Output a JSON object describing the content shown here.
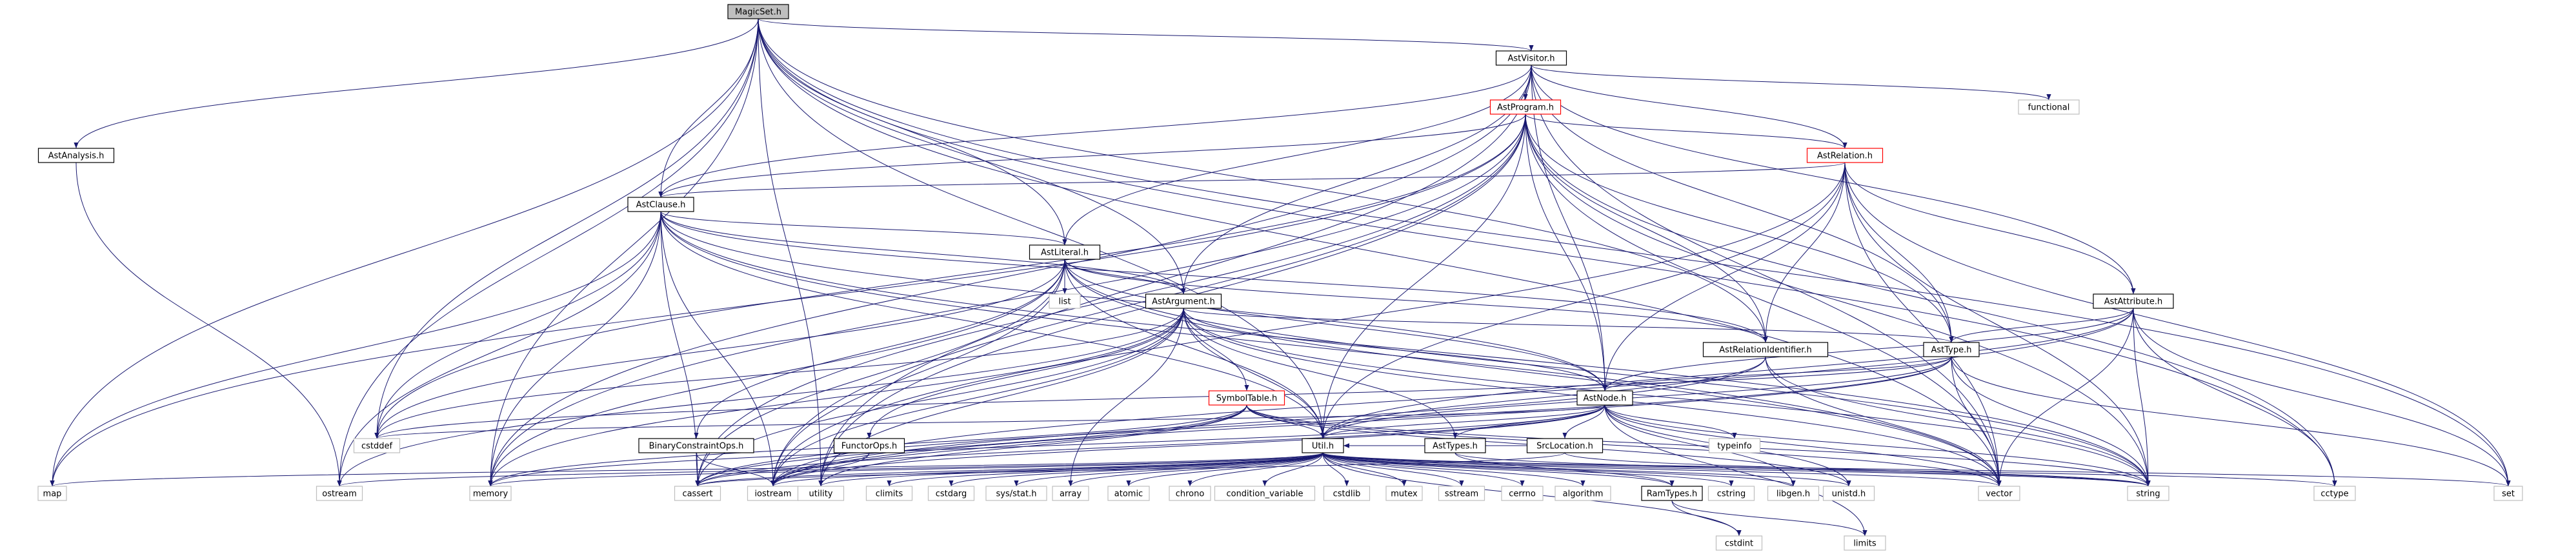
{
  "diagram": {
    "type": "include-dependency-graph",
    "colors": {
      "edge": "#191970",
      "root_fill": "#bfbfbf",
      "root_border": "#000000",
      "documented_border": "#000000",
      "undocumented_border": "#ff0000",
      "system_border": "#bfbfbf",
      "node_fill": "#ffffff"
    },
    "nodes": [
      {
        "id": "magicset",
        "label": "MagicSet.h",
        "kind": "root"
      },
      {
        "id": "astanalysis",
        "label": "AstAnalysis.h",
        "kind": "documented"
      },
      {
        "id": "astvisitor",
        "label": "AstVisitor.h",
        "kind": "documented"
      },
      {
        "id": "astprogram",
        "label": "AstProgram.h",
        "kind": "undocumented"
      },
      {
        "id": "functional",
        "label": "functional",
        "kind": "system"
      },
      {
        "id": "astrelation",
        "label": "AstRelation.h",
        "kind": "undocumented"
      },
      {
        "id": "astclause",
        "label": "AstClause.h",
        "kind": "documented"
      },
      {
        "id": "astliteral",
        "label": "AstLiteral.h",
        "kind": "documented"
      },
      {
        "id": "list",
        "label": "list",
        "kind": "system"
      },
      {
        "id": "astargument",
        "label": "AstArgument.h",
        "kind": "documented"
      },
      {
        "id": "astattribute",
        "label": "AstAttribute.h",
        "kind": "documented"
      },
      {
        "id": "astrelid",
        "label": "AstRelationIdentifier.h",
        "kind": "documented"
      },
      {
        "id": "asttype",
        "label": "AstType.h",
        "kind": "documented"
      },
      {
        "id": "symboltable",
        "label": "SymbolTable.h",
        "kind": "undocumented"
      },
      {
        "id": "astnode",
        "label": "AstNode.h",
        "kind": "documented"
      },
      {
        "id": "typeinfo",
        "label": "typeinfo",
        "kind": "system"
      },
      {
        "id": "cstddef",
        "label": "cstddef",
        "kind": "system"
      },
      {
        "id": "binconst",
        "label": "BinaryConstraintOps.h",
        "kind": "documented"
      },
      {
        "id": "functorops",
        "label": "FunctorOps.h",
        "kind": "documented"
      },
      {
        "id": "utilh",
        "label": "Util.h",
        "kind": "documented"
      },
      {
        "id": "asttypes",
        "label": "AstTypes.h",
        "kind": "documented"
      },
      {
        "id": "srcloc",
        "label": "SrcLocation.h",
        "kind": "documented"
      },
      {
        "id": "map",
        "label": "map",
        "kind": "system"
      },
      {
        "id": "ostream",
        "label": "ostream",
        "kind": "system"
      },
      {
        "id": "memory",
        "label": "memory",
        "kind": "system"
      },
      {
        "id": "cassert",
        "label": "cassert",
        "kind": "system"
      },
      {
        "id": "iostream",
        "label": "iostream",
        "kind": "system"
      },
      {
        "id": "utility",
        "label": "utility",
        "kind": "system"
      },
      {
        "id": "climits",
        "label": "climits",
        "kind": "system"
      },
      {
        "id": "cstdarg",
        "label": "cstdarg",
        "kind": "system"
      },
      {
        "id": "sysstat",
        "label": "sys/stat.h",
        "kind": "system"
      },
      {
        "id": "array",
        "label": "array",
        "kind": "system"
      },
      {
        "id": "atomic",
        "label": "atomic",
        "kind": "system"
      },
      {
        "id": "chrono",
        "label": "chrono",
        "kind": "system"
      },
      {
        "id": "condvar",
        "label": "condition_variable",
        "kind": "system"
      },
      {
        "id": "cstdlib",
        "label": "cstdlib",
        "kind": "system"
      },
      {
        "id": "mutex",
        "label": "mutex",
        "kind": "system"
      },
      {
        "id": "sstream",
        "label": "sstream",
        "kind": "system"
      },
      {
        "id": "cerrno",
        "label": "cerrno",
        "kind": "system"
      },
      {
        "id": "algorithm",
        "label": "algorithm",
        "kind": "system"
      },
      {
        "id": "ramtypes",
        "label": "RamTypes.h",
        "kind": "documented"
      },
      {
        "id": "cstring",
        "label": "cstring",
        "kind": "system"
      },
      {
        "id": "libgen",
        "label": "libgen.h",
        "kind": "system"
      },
      {
        "id": "unistd",
        "label": "unistd.h",
        "kind": "system"
      },
      {
        "id": "vector",
        "label": "vector",
        "kind": "system"
      },
      {
        "id": "string",
        "label": "string",
        "kind": "system"
      },
      {
        "id": "cctype",
        "label": "cctype",
        "kind": "system"
      },
      {
        "id": "set",
        "label": "set",
        "kind": "system"
      },
      {
        "id": "cstdint",
        "label": "cstdint",
        "kind": "system"
      },
      {
        "id": "limits",
        "label": "limits",
        "kind": "system"
      }
    ],
    "edges": [
      [
        "magicset",
        "astanalysis"
      ],
      [
        "magicset",
        "astvisitor"
      ],
      [
        "magicset",
        "astclause"
      ],
      [
        "magicset",
        "astliteral"
      ],
      [
        "magicset",
        "astargument"
      ],
      [
        "magicset",
        "astrelid"
      ],
      [
        "magicset",
        "utilh"
      ],
      [
        "magicset",
        "map"
      ],
      [
        "magicset",
        "ostream"
      ],
      [
        "magicset",
        "memory"
      ],
      [
        "magicset",
        "cstddef"
      ],
      [
        "magicset",
        "utility"
      ],
      [
        "magicset",
        "vector"
      ],
      [
        "magicset",
        "set"
      ],
      [
        "magicset",
        "cctype"
      ],
      [
        "astanalysis",
        "ostream"
      ],
      [
        "astvisitor",
        "astprogram"
      ],
      [
        "astvisitor",
        "functional"
      ],
      [
        "astvisitor",
        "astrelation"
      ],
      [
        "astvisitor",
        "astclause"
      ],
      [
        "astvisitor",
        "astliteral"
      ],
      [
        "astvisitor",
        "astargument"
      ],
      [
        "astvisitor",
        "astattribute"
      ],
      [
        "astvisitor",
        "asttype"
      ],
      [
        "astvisitor",
        "astnode"
      ],
      [
        "astvisitor",
        "memory"
      ],
      [
        "astvisitor",
        "utility"
      ],
      [
        "astvisitor",
        "vector"
      ],
      [
        "astprogram",
        "astrelation"
      ],
      [
        "astprogram",
        "astclause"
      ],
      [
        "astprogram",
        "asttype"
      ],
      [
        "astprogram",
        "astrelid"
      ],
      [
        "astprogram",
        "astnode"
      ],
      [
        "astprogram",
        "utilh"
      ],
      [
        "astprogram",
        "map"
      ],
      [
        "astprogram",
        "memory"
      ],
      [
        "astprogram",
        "string"
      ],
      [
        "astprogram",
        "vector"
      ],
      [
        "astprogram",
        "iostream"
      ],
      [
        "astprogram",
        "cassert"
      ],
      [
        "astprogram",
        "cstddef"
      ],
      [
        "astprogram",
        "utility"
      ],
      [
        "astprogram",
        "cctype"
      ],
      [
        "astrelation",
        "astclause"
      ],
      [
        "astrelation",
        "astattribute"
      ],
      [
        "astrelation",
        "asttype"
      ],
      [
        "astrelation",
        "astrelid"
      ],
      [
        "astrelation",
        "astnode"
      ],
      [
        "astrelation",
        "string"
      ],
      [
        "astrelation",
        "vector"
      ],
      [
        "astrelation",
        "set"
      ],
      [
        "astrelation",
        "iostream"
      ],
      [
        "astrelation",
        "utilh"
      ],
      [
        "astclause",
        "astliteral"
      ],
      [
        "astclause",
        "astargument"
      ],
      [
        "astclause",
        "astnode"
      ],
      [
        "astclause",
        "astrelid"
      ],
      [
        "astclause",
        "utilh"
      ],
      [
        "astclause",
        "map"
      ],
      [
        "astclause",
        "memory"
      ],
      [
        "astclause",
        "string"
      ],
      [
        "astclause",
        "vector"
      ],
      [
        "astclause",
        "cstddef"
      ],
      [
        "astclause",
        "ostream"
      ],
      [
        "astclause",
        "cassert"
      ],
      [
        "astclause",
        "iostream"
      ],
      [
        "astliteral",
        "astargument"
      ],
      [
        "astliteral",
        "astnode"
      ],
      [
        "astliteral",
        "astrelid"
      ],
      [
        "astliteral",
        "list"
      ],
      [
        "astliteral",
        "binconst"
      ],
      [
        "astliteral",
        "utilh"
      ],
      [
        "astliteral",
        "memory"
      ],
      [
        "astliteral",
        "string"
      ],
      [
        "astliteral",
        "vector"
      ],
      [
        "astliteral",
        "iostream"
      ],
      [
        "astliteral",
        "cassert"
      ],
      [
        "astliteral",
        "cstddef"
      ],
      [
        "astargument",
        "asttype"
      ],
      [
        "astargument",
        "astnode"
      ],
      [
        "astargument",
        "symboltable"
      ],
      [
        "astargument",
        "functorops"
      ],
      [
        "astargument",
        "asttypes"
      ],
      [
        "astargument",
        "utilh"
      ],
      [
        "astargument",
        "string"
      ],
      [
        "astargument",
        "vector"
      ],
      [
        "astargument",
        "memory"
      ],
      [
        "astargument",
        "cassert"
      ],
      [
        "astargument",
        "iostream"
      ],
      [
        "astargument",
        "ostream"
      ],
      [
        "astargument",
        "array"
      ],
      [
        "astargument",
        "cstddef"
      ],
      [
        "astargument",
        "utility"
      ],
      [
        "astattribute",
        "astnode"
      ],
      [
        "astattribute",
        "asttype"
      ],
      [
        "astattribute",
        "string"
      ],
      [
        "astattribute",
        "vector"
      ],
      [
        "astattribute",
        "set"
      ],
      [
        "astattribute",
        "cctype"
      ],
      [
        "astattribute",
        "utilh"
      ],
      [
        "astattribute",
        "iostream"
      ],
      [
        "astrelid",
        "utilh"
      ],
      [
        "astrelid",
        "string"
      ],
      [
        "astrelid",
        "vector"
      ],
      [
        "astrelid",
        "iostream"
      ],
      [
        "asttype",
        "astnode"
      ],
      [
        "asttype",
        "utilh"
      ],
      [
        "asttype",
        "set"
      ],
      [
        "asttype",
        "string"
      ],
      [
        "asttype",
        "vector"
      ],
      [
        "asttype",
        "iostream"
      ],
      [
        "asttype",
        "cassert"
      ],
      [
        "asttype",
        "cstddef"
      ],
      [
        "symboltable",
        "utilh"
      ],
      [
        "symboltable",
        "memory"
      ],
      [
        "symboltable",
        "iostream"
      ],
      [
        "symboltable",
        "cassert"
      ],
      [
        "symboltable",
        "string"
      ],
      [
        "symboltable",
        "vector"
      ],
      [
        "symboltable",
        "unistd"
      ],
      [
        "symboltable",
        "utility"
      ],
      [
        "astnode",
        "srcloc"
      ],
      [
        "astnode",
        "asttypes"
      ],
      [
        "astnode",
        "typeinfo"
      ],
      [
        "astnode",
        "utilh"
      ],
      [
        "astnode",
        "memory"
      ],
      [
        "astnode",
        "string"
      ],
      [
        "astnode",
        "vector"
      ],
      [
        "astnode",
        "iostream"
      ],
      [
        "astnode",
        "cassert"
      ],
      [
        "astnode",
        "cstddef"
      ],
      [
        "astnode",
        "libgen"
      ],
      [
        "astnode",
        "unistd"
      ],
      [
        "astnode",
        "limits"
      ],
      [
        "binconst",
        "cassert"
      ],
      [
        "binconst",
        "iostream"
      ],
      [
        "functorops",
        "cassert"
      ],
      [
        "functorops",
        "iostream"
      ],
      [
        "asttypes",
        "ramtypes"
      ],
      [
        "asttypes",
        "utilh"
      ],
      [
        "asttypes",
        "string"
      ],
      [
        "srcloc",
        "string"
      ],
      [
        "srcloc",
        "utilh"
      ],
      [
        "srcloc",
        "cassert"
      ],
      [
        "utilh",
        "ramtypes"
      ],
      [
        "utilh",
        "map"
      ],
      [
        "utilh",
        "ostream"
      ],
      [
        "utilh",
        "memory"
      ],
      [
        "utilh",
        "cassert"
      ],
      [
        "utilh",
        "iostream"
      ],
      [
        "utilh",
        "utility"
      ],
      [
        "utilh",
        "climits"
      ],
      [
        "utilh",
        "cstdarg"
      ],
      [
        "utilh",
        "sysstat"
      ],
      [
        "utilh",
        "array"
      ],
      [
        "utilh",
        "atomic"
      ],
      [
        "utilh",
        "chrono"
      ],
      [
        "utilh",
        "condvar"
      ],
      [
        "utilh",
        "cstdlib"
      ],
      [
        "utilh",
        "mutex"
      ],
      [
        "utilh",
        "sstream"
      ],
      [
        "utilh",
        "cerrno"
      ],
      [
        "utilh",
        "algorithm"
      ],
      [
        "utilh",
        "cstring"
      ],
      [
        "utilh",
        "libgen"
      ],
      [
        "utilh",
        "unistd"
      ],
      [
        "utilh",
        "vector"
      ],
      [
        "utilh",
        "string"
      ],
      [
        "utilh",
        "set"
      ],
      [
        "utilh",
        "cctype"
      ],
      [
        "utilh",
        "cstdint"
      ],
      [
        "ramtypes",
        "cstdint"
      ],
      [
        "ramtypes",
        "limits"
      ]
    ]
  }
}
